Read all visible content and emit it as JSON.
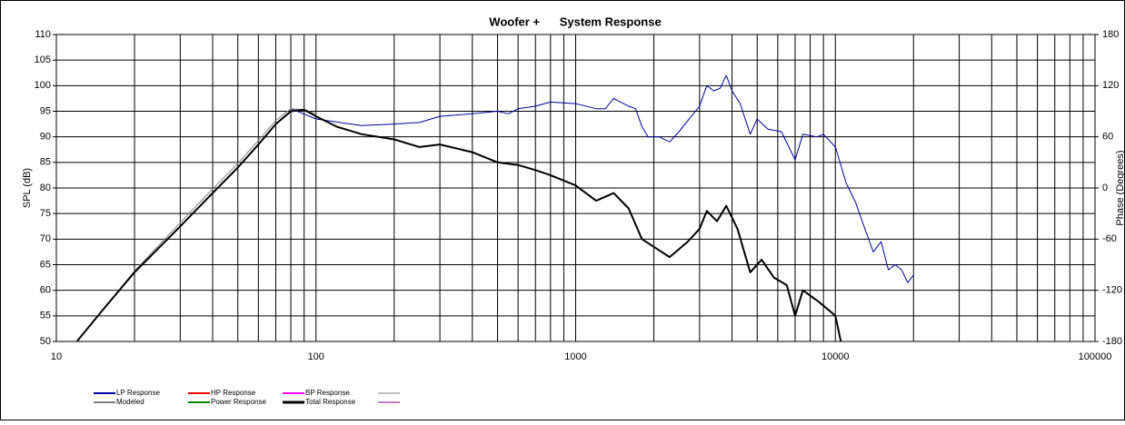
{
  "chart_data": {
    "type": "line",
    "title": "Woofer +      System Response",
    "y_label": "SPL (dB)",
    "y2_label": "Phase (Degrees)",
    "log_x": true,
    "grid": true,
    "minor_grid": true,
    "xlim": [
      10,
      100000
    ],
    "xticks": [
      10,
      100,
      1000,
      10000,
      100000
    ],
    "ylim": [
      50,
      110
    ],
    "yticks": [
      50,
      55,
      60,
      65,
      70,
      75,
      80,
      85,
      90,
      95,
      100,
      105,
      110
    ],
    "y2lim": [
      -180,
      180
    ],
    "y2ticks": [
      -180,
      -120,
      -60,
      0,
      60,
      120,
      180
    ],
    "series": [
      {
        "name": "LP Response",
        "color": "#0000a0",
        "width": 1,
        "x": [
          80,
          100,
          150,
          200,
          250,
          300,
          400,
          500,
          550,
          600,
          700,
          800,
          1000,
          1200,
          1300,
          1400,
          1600,
          1700,
          1800,
          1900,
          2100,
          2300,
          2500,
          3000,
          3200,
          3400,
          3600,
          3800,
          4000,
          4300,
          4700,
          5000,
          5500,
          6200,
          7000,
          7500,
          8500,
          9000,
          10000,
          11000,
          12000,
          13000,
          14000,
          15000,
          16000,
          17000,
          18000,
          19000,
          20000
        ],
        "values": [
          95.5,
          93.5,
          92.2,
          92.5,
          92.8,
          94,
          94.5,
          95,
          94.5,
          95.5,
          96,
          96.8,
          96.5,
          95.5,
          95.5,
          97.5,
          96,
          95.5,
          92,
          90,
          90,
          89,
          91,
          96,
          100,
          99,
          99.5,
          102,
          99,
          96.5,
          90.5,
          93.5,
          91.5,
          91,
          85.5,
          90.5,
          90,
          90.5,
          88,
          81,
          77,
          72,
          67.5,
          69.5,
          64,
          65,
          64,
          61.5,
          63
        ]
      },
      {
        "name": "HP Response",
        "color": "#ff0000",
        "width": 1,
        "x": [],
        "values": []
      },
      {
        "name": "BP Response",
        "color": "#ff00ff",
        "width": 1,
        "x": [],
        "values": []
      },
      {
        "name": "Modeled",
        "color": "#808080",
        "width": 1,
        "x": [
          12,
          20,
          30,
          40,
          50,
          60,
          70,
          80,
          90,
          100
        ],
        "values": [
          50,
          63.8,
          73.2,
          79.8,
          84.8,
          89.3,
          93.2,
          95.5,
          95.3,
          94.5
        ]
      },
      {
        "name": "Power Response",
        "color": "#008000",
        "width": 1,
        "x": [],
        "values": []
      },
      {
        "name": "Total Response",
        "color": "#000000",
        "width": 2,
        "x": [
          12,
          15,
          20,
          30,
          40,
          50,
          60,
          70,
          80,
          90,
          100,
          120,
          150,
          200,
          250,
          300,
          400,
          500,
          600,
          700,
          800,
          1000,
          1200,
          1400,
          1600,
          1800,
          2000,
          2300,
          2700,
          3000,
          3200,
          3500,
          3800,
          4200,
          4700,
          5200,
          5800,
          6500,
          7000,
          7500,
          8500,
          9500,
          10000,
          10500
        ],
        "values": [
          50,
          56,
          63.5,
          72.5,
          79,
          84,
          88.5,
          92.5,
          95,
          95.3,
          94,
          92,
          90.5,
          89.5,
          88,
          88.5,
          87,
          85,
          84.5,
          83.5,
          82.5,
          80.5,
          77.5,
          79,
          76,
          70,
          68.5,
          66.5,
          69.5,
          72,
          75.5,
          73.5,
          76.5,
          72,
          63.5,
          66,
          62.5,
          61,
          55,
          60,
          58,
          56,
          55,
          50
        ]
      }
    ]
  }
}
